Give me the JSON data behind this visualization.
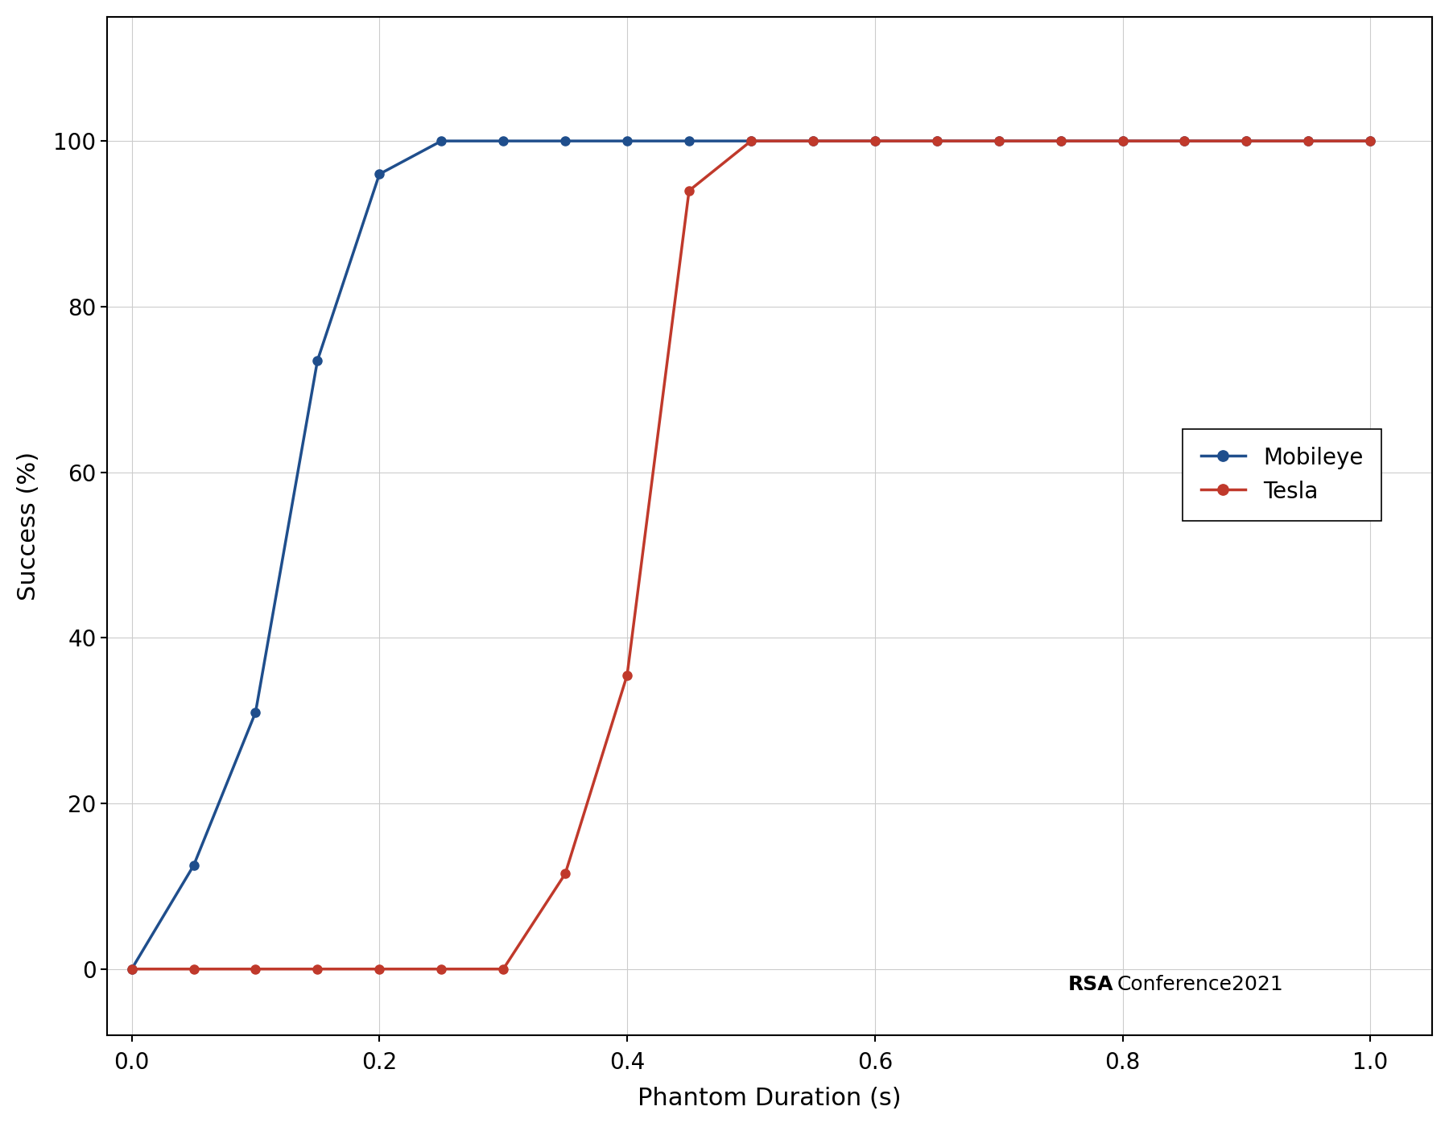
{
  "mobileye_x": [
    0.0,
    0.05,
    0.1,
    0.15,
    0.2,
    0.25,
    0.3,
    0.35,
    0.4,
    0.45,
    0.5,
    0.55,
    0.6,
    0.65,
    0.7,
    0.75,
    0.8,
    0.85,
    0.9,
    0.95,
    1.0
  ],
  "mobileye_y": [
    0.0,
    12.5,
    31.0,
    73.5,
    96.0,
    100.0,
    100.0,
    100.0,
    100.0,
    100.0,
    100.0,
    100.0,
    100.0,
    100.0,
    100.0,
    100.0,
    100.0,
    100.0,
    100.0,
    100.0,
    100.0
  ],
  "tesla_x": [
    0.0,
    0.05,
    0.1,
    0.15,
    0.2,
    0.25,
    0.3,
    0.35,
    0.4,
    0.45,
    0.5,
    0.55,
    0.6,
    0.65,
    0.7,
    0.75,
    0.8,
    0.85,
    0.9,
    0.95,
    1.0
  ],
  "tesla_y": [
    0.0,
    0.0,
    0.0,
    0.0,
    0.0,
    0.0,
    0.0,
    11.5,
    35.5,
    94.0,
    100.0,
    100.0,
    100.0,
    100.0,
    100.0,
    100.0,
    100.0,
    100.0,
    100.0,
    100.0,
    100.0
  ],
  "mobileye_color": "#1f4e8c",
  "tesla_color": "#c0392b",
  "xlabel": "Phantom Duration (s)",
  "ylabel": "Success (%)",
  "xlim": [
    -0.02,
    1.05
  ],
  "ylim": [
    -8,
    115
  ],
  "xticks": [
    0,
    0.2,
    0.4,
    0.6,
    0.8,
    1.0
  ],
  "yticks": [
    0,
    20,
    40,
    60,
    80,
    100
  ],
  "legend_mobileye": "Mobileye",
  "legend_tesla": "Tesla",
  "watermark_bold": "RSA",
  "watermark_normal": "Conference2021",
  "background_color": "#ffffff",
  "grid_color": "#cccccc",
  "marker_size": 8,
  "line_width": 2.5,
  "label_fontsize": 22,
  "tick_fontsize": 20,
  "legend_fontsize": 20,
  "watermark_fontsize": 18
}
